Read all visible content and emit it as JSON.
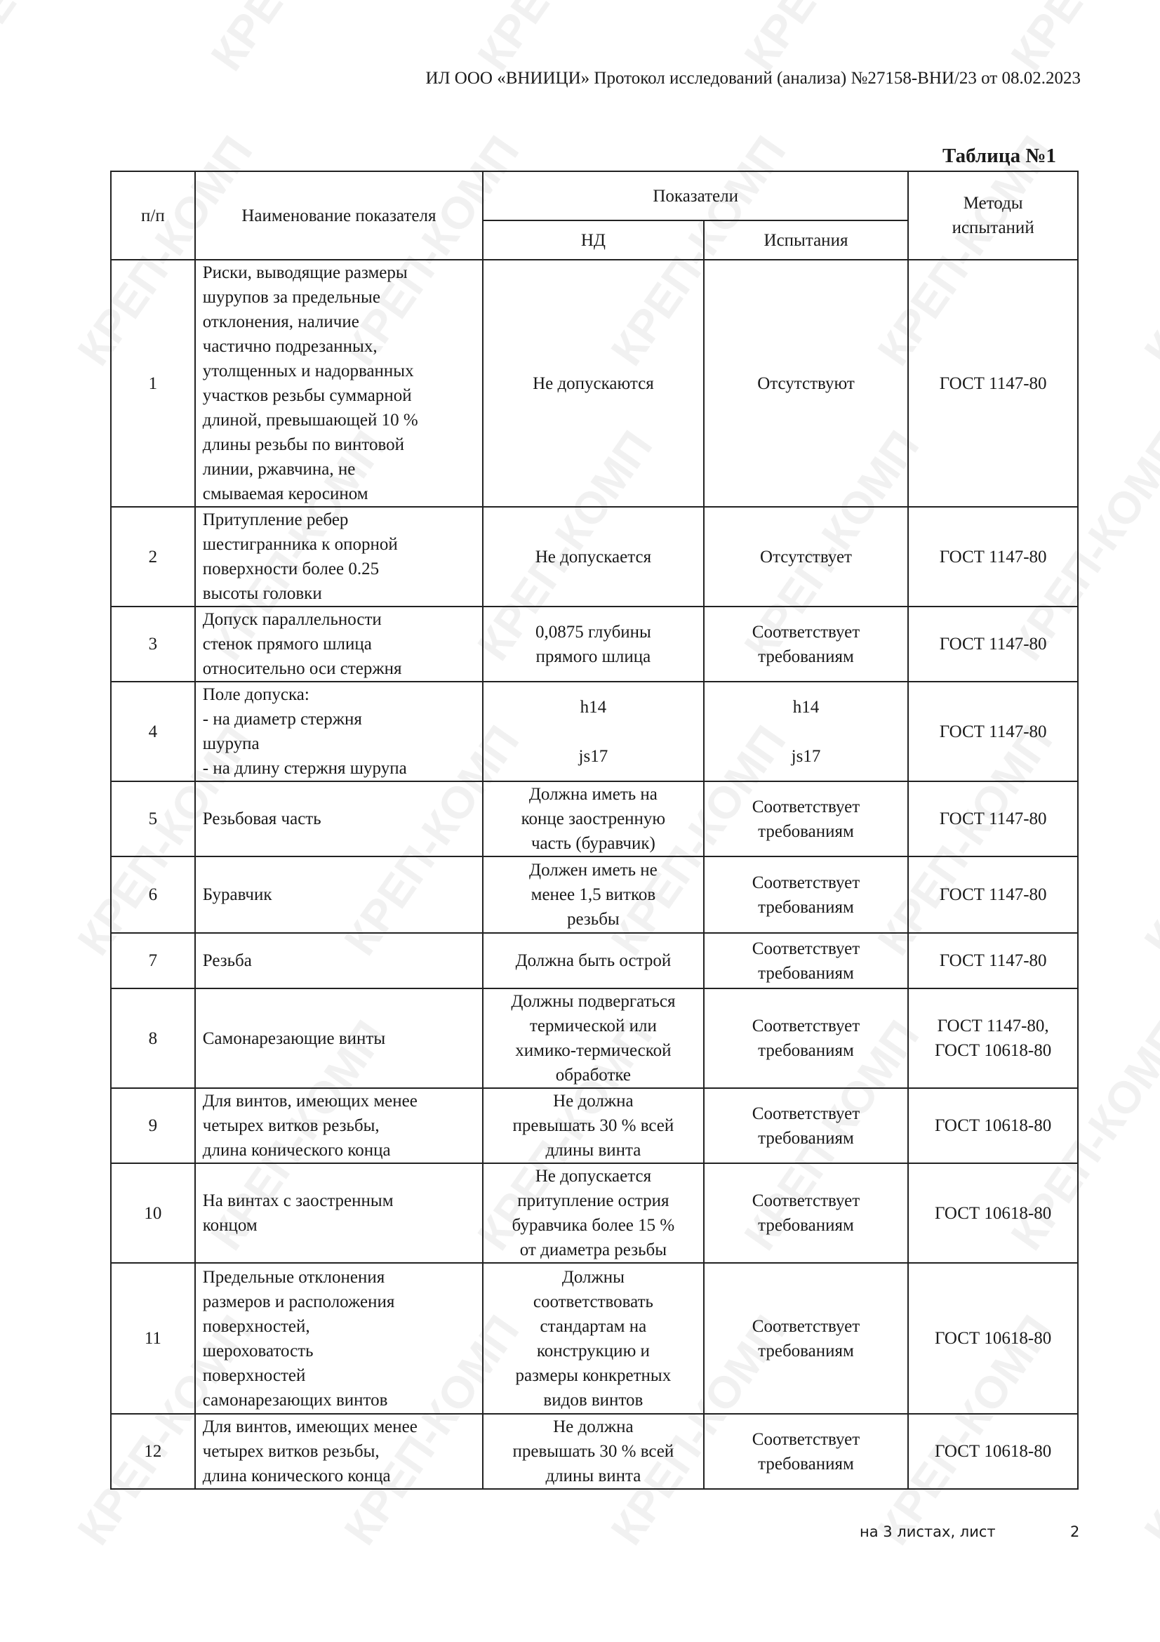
{
  "watermark": "КРЕП-КОМП",
  "header": "ИЛ ООО «ВНИИЦИ»  Протокол исследований (анализа)  №27158-ВНИ/23 от  08.02.2023",
  "table_title": "Таблица №1",
  "columns": {
    "num": "п/п",
    "name": "Наименование показателя",
    "indicators": "Показатели",
    "nd": "НД",
    "test": "Испытания",
    "methods": "Методы\nиспытаний"
  },
  "rows": [
    {
      "num": "1",
      "name": "Риски, выводящие размеры\nшурупов за предельные\nотклонения, наличие\nчастично подрезанных,\nутолщенных и надорванных\nучастков резьбы суммарной\nдлиной, превышающей 10 %\nдлины резьбы по винтовой\nлинии, ржавчина, не\nсмываемая керосином",
      "nd": "Не допускаются",
      "test": "Отсутствуют",
      "method": "ГОСТ 1147-80"
    },
    {
      "num": "2",
      "name": "Притупление ребер\nшестигранника к опорной\nповерхности более 0.25\nвысоты головки",
      "nd": "Не допускается",
      "test": "Отсутствует",
      "method": "ГОСТ 1147-80"
    },
    {
      "num": "3",
      "name": "Допуск параллельности\nстенок прямого шлица\nотносительно оси стержня",
      "nd": "0,0875 глубины\nпрямого шлица",
      "test": "Соответствует\nтребованиям",
      "method": "ГОСТ 1147-80"
    },
    {
      "num": "4",
      "name": "Поле допуска:\n- на диаметр стержня\nшурупа\n- на длину стержня шурупа",
      "nd": "h14\n\njs17",
      "test": "h14\n\njs17",
      "method": "ГОСТ 1147-80"
    },
    {
      "num": "5",
      "name": "Резьбовая часть",
      "nd": "Должна иметь на\nконце заостренную\nчасть (буравчик)",
      "test": "Соответствует\nтребованиям",
      "method": "ГОСТ 1147-80"
    },
    {
      "num": "6",
      "name": "Буравчик",
      "nd": "Должен иметь не\nменее 1,5 витков\nрезьбы",
      "test": "Соответствует\nтребованиям",
      "method": "ГОСТ 1147-80"
    },
    {
      "num": "7",
      "name": "Резьба",
      "nd": "Должна быть острой",
      "test": "Соответствует\nтребованиям",
      "method": "ГОСТ 1147-80"
    },
    {
      "num": "8",
      "name": "Самонарезающие винты",
      "nd": "Должны подвергаться\nтермической или\nхимико-термической\nобработке",
      "test": "Соответствует\nтребованиям",
      "method": "ГОСТ 1147-80,\nГОСТ 10618-80"
    },
    {
      "num": "9",
      "name": "Для винтов, имеющих менее\nчетырех витков резьбы,\nдлина конического конца",
      "nd": "Не должна\nпревышать 30 % всей\nдлины винта",
      "test": "Соответствует\nтребованиям",
      "method": "ГОСТ 10618-80"
    },
    {
      "num": "10",
      "name": "На винтах с заостренным\nконцом",
      "nd": "Не допускается\nпритупление острия\nбуравчика более 15 %\nот диаметра резьбы",
      "test": "Соответствует\nтребованиям",
      "method": "ГОСТ 10618-80"
    },
    {
      "num": "11",
      "name": "Предельные отклонения\nразмеров и расположения\nповерхностей,\nшероховатость\nповерхностей\nсамонарезающих винтов",
      "nd": "Должны\nсоответствовать\nстандартам на\nконструкцию и\nразмеры конкретных\nвидов винтов",
      "test": "Соответствует\nтребованиям",
      "method": "ГОСТ 10618-80"
    },
    {
      "num": "12",
      "name": "Для винтов, имеющих менее\nчетырех витков резьбы,\nдлина конического конца",
      "nd": "Не должна\nпревышать 30 % всей\nдлины винта",
      "test": "Соответствует\nтребованиям",
      "method": "ГОСТ 10618-80"
    }
  ],
  "footer": {
    "text": "на 3  листах, лист",
    "page": "2"
  }
}
